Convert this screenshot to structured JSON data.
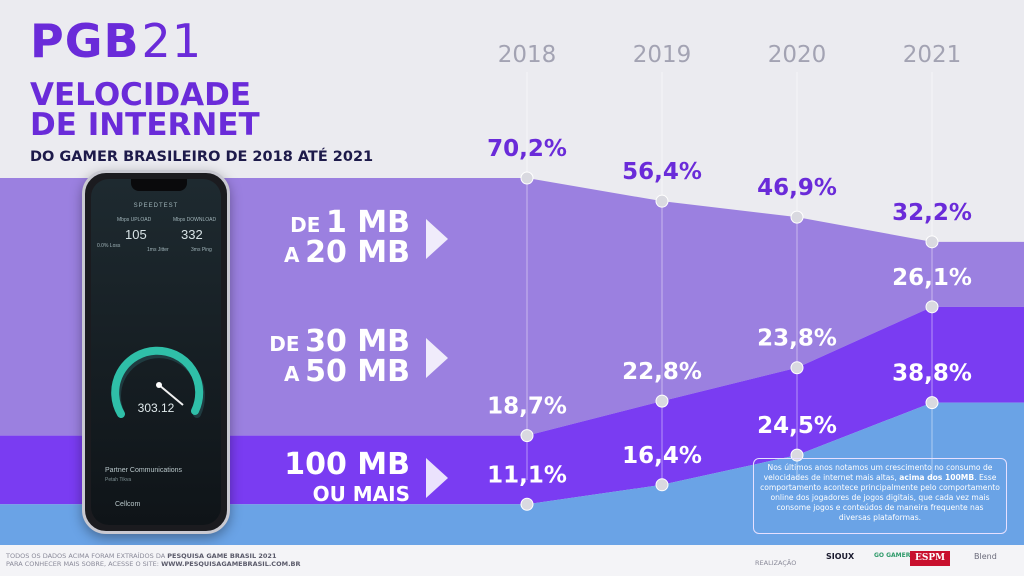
{
  "header": {
    "logo_text": "PGB",
    "logo_year": "21",
    "title_line1": "VELOCIDADE",
    "title_line2": "DE INTERNET",
    "subtitle": "DO GAMER BRASILEIRO DE 2018 ATÉ 2021"
  },
  "chart_data": {
    "type": "area",
    "stacked": true,
    "percent_stacked": true,
    "x": [
      "2018",
      "2019",
      "2020",
      "2021"
    ],
    "series": [
      {
        "name": "DE 1 MB A 20 MB",
        "values": [
          70.2,
          56.4,
          46.9,
          32.2
        ],
        "labels": [
          "70,2%",
          "56,4%",
          "46,9%",
          "32,2%"
        ]
      },
      {
        "name": "DE 30 MB A 50 MB",
        "values": [
          18.7,
          22.8,
          23.8,
          26.1
        ],
        "labels": [
          "18,7%",
          "22,8%",
          "23,8%",
          "26,1%"
        ]
      },
      {
        "name": "100 MB OU MAIS",
        "values": [
          11.1,
          16.4,
          24.5,
          38.8
        ],
        "labels": [
          "11,1%",
          "16,4%",
          "24,5%",
          "38,8%"
        ]
      }
    ],
    "colors": [
      "#9b80e0",
      "#7a3cf2",
      "#6aa3e6"
    ],
    "label_colors": [
      "#6a2bd9",
      "#ffffff",
      "#ffffff"
    ]
  },
  "categories": {
    "cat1_line1_small": "DE",
    "cat1_line1_big": "1 MB",
    "cat1_line2_small": "A",
    "cat1_line2_big": "20 MB",
    "cat2_line1_small": "DE",
    "cat2_line1_big": "30 MB",
    "cat2_line2_small": "A",
    "cat2_line2_big": "50 MB",
    "cat3_line1": "100 MB",
    "cat3_line2": "OU MAIS"
  },
  "phone": {
    "app_name": "SPEEDTEST",
    "upload_label": "Mbps UPLOAD",
    "upload_value": "105",
    "download_label": "Mbps DOWNLOAD",
    "download_value": "332",
    "loss_label": "0.0% Loss",
    "jitter_label": "1ms Jitter",
    "ping_label": "3ms Ping",
    "speed_value": "303.12",
    "provider": "Partner Communications",
    "provider_location": "Petah Tikva",
    "network": "Cellcom"
  },
  "note": {
    "text_before": "Nos últimos anos notamos um crescimento no consumo de velocidades de internet mais altas,",
    "text_bold": "acima dos 100MB",
    "text_after": ". Esse comportamento acontece principalmente pelo comportamento online dos jogadores de jogos digitais, que cada vez mais consome jogos e conteúdos de maneira frequente nas diversas plataformas."
  },
  "footer": {
    "source_prefix": "TODOS OS DADOS ACIMA FORAM EXTRAÍDOS DA",
    "source_bold": "PESQUISA GAME BRASIL 2021",
    "site_prefix": "PARA CONHECER MAIS SOBRE, ACESSE O SITE:",
    "site_bold": "WWW.PESQUISAGAMEBRASIL.COM.BR",
    "realization": "REALIZAÇÃO",
    "partner_sioux": "SIOUX",
    "partner_gg": "GO GAMERS",
    "partner_espm": "ESPM",
    "partner_blend": "Blend"
  }
}
